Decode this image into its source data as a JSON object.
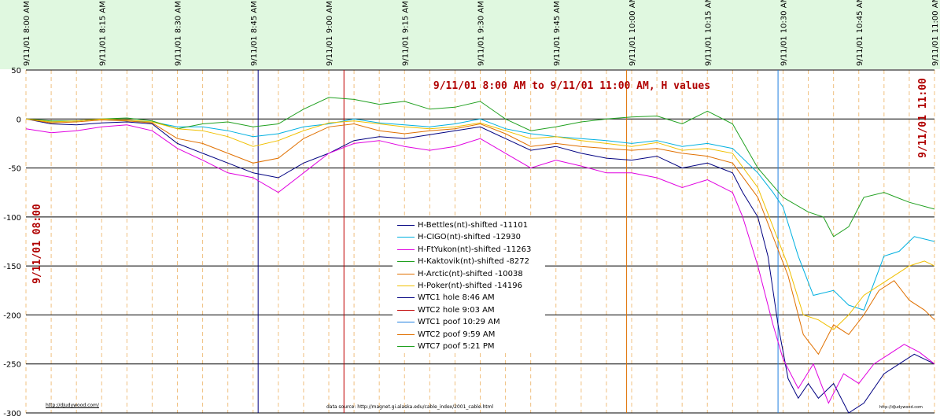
{
  "chart_data": {
    "type": "line",
    "title": "9/11/01 8:00 AM  to  9/11/01 11:00 AM, H values",
    "left_label": "9/11/01 08:00",
    "right_label": "9/11/01 11:00",
    "ylim": [
      -300,
      50
    ],
    "yticks": [
      50,
      0,
      -50,
      -100,
      -150,
      -200,
      -250,
      -300
    ],
    "xlim": [
      "8:00",
      "11:00"
    ],
    "xtick_labels": [
      "9/11/01 8:00 AM",
      "9/11/01 8:15 AM",
      "9/11/01 8:30 AM",
      "9/11/01 8:45 AM",
      "9/11/01 9:00 AM",
      "9/11/01 9:15 AM",
      "9/11/01 9:30 AM",
      "9/11/01 9:45 AM",
      "9/11/01 10:00 AM",
      "9/11/01 10:15 AM",
      "9/11/01 10:30 AM",
      "9/11/01 10:45 AM",
      "9/11/01 11:00 AM"
    ],
    "xticks": [
      "8:00",
      "8:15",
      "8:30",
      "8:45",
      "9:00",
      "9:15",
      "9:30",
      "9:45",
      "10:00",
      "10:15",
      "10:30",
      "10:45",
      "11:00"
    ],
    "minor_gridlines": [
      "8:05",
      "8:10",
      "8:20",
      "8:25",
      "8:35",
      "8:40",
      "8:50",
      "8:55",
      "9:05",
      "9:10",
      "9:20",
      "9:25",
      "9:35",
      "9:40",
      "9:50",
      "9:55",
      "10:05",
      "10:10",
      "10:20",
      "10:25",
      "10:35",
      "10:40",
      "10:50",
      "10:55"
    ],
    "series": [
      {
        "name": "H-Bettles(nt)-shifted -11101",
        "color": "#000080",
        "x": [
          "8:00",
          "8:05",
          "8:10",
          "8:15",
          "8:20",
          "8:25",
          "8:30",
          "8:35",
          "8:40",
          "8:45",
          "8:50",
          "8:55",
          "9:00",
          "9:05",
          "9:10",
          "9:15",
          "9:20",
          "9:25",
          "9:30",
          "9:35",
          "9:40",
          "9:45",
          "9:50",
          "9:55",
          "10:00",
          "10:05",
          "10:10",
          "10:15",
          "10:20",
          "10:22",
          "10:25",
          "10:27",
          "10:29",
          "10:31",
          "10:33",
          "10:35",
          "10:37",
          "10:40",
          "10:43",
          "10:46",
          "10:50",
          "10:53",
          "10:56",
          "11:00"
        ],
        "y": [
          0,
          -5,
          -6,
          -4,
          -3,
          -5,
          -25,
          -35,
          -45,
          -55,
          -60,
          -45,
          -35,
          -22,
          -18,
          -20,
          -16,
          -12,
          -8,
          -20,
          -32,
          -28,
          -35,
          -40,
          -42,
          -38,
          -50,
          -45,
          -55,
          -75,
          -100,
          -140,
          -210,
          -265,
          -285,
          -270,
          -285,
          -270,
          -300,
          -290,
          -260,
          -250,
          -240,
          -250
        ]
      },
      {
        "name": "H-CIGO(nt)-shifted -12930",
        "color": "#00B0E0",
        "x": [
          "8:00",
          "8:05",
          "8:10",
          "8:15",
          "8:20",
          "8:25",
          "8:30",
          "8:35",
          "8:40",
          "8:45",
          "8:50",
          "8:55",
          "9:00",
          "9:05",
          "9:10",
          "9:15",
          "9:20",
          "9:25",
          "9:30",
          "9:35",
          "9:40",
          "9:45",
          "9:50",
          "9:55",
          "10:00",
          "10:05",
          "10:10",
          "10:15",
          "10:20",
          "10:25",
          "10:28",
          "10:30",
          "10:33",
          "10:36",
          "10:40",
          "10:43",
          "10:46",
          "10:50",
          "10:53",
          "10:56",
          "11:00"
        ],
        "y": [
          0,
          -3,
          -2,
          0,
          -2,
          -3,
          -8,
          -8,
          -12,
          -18,
          -15,
          -8,
          -5,
          0,
          -4,
          -6,
          -8,
          -5,
          0,
          -10,
          -15,
          -18,
          -20,
          -22,
          -25,
          -22,
          -28,
          -25,
          -30,
          -55,
          -75,
          -90,
          -140,
          -180,
          -175,
          -190,
          -195,
          -140,
          -135,
          -120,
          -125
        ]
      },
      {
        "name": "H-FtYukon(nt)-shifted -11263",
        "color": "#E000E0",
        "x": [
          "8:00",
          "8:05",
          "8:10",
          "8:15",
          "8:20",
          "8:25",
          "8:30",
          "8:35",
          "8:40",
          "8:45",
          "8:50",
          "8:55",
          "9:00",
          "9:05",
          "9:10",
          "9:15",
          "9:20",
          "9:25",
          "9:30",
          "9:35",
          "9:40",
          "9:45",
          "9:50",
          "9:55",
          "10:00",
          "10:05",
          "10:10",
          "10:15",
          "10:20",
          "10:22",
          "10:25",
          "10:28",
          "10:30",
          "10:33",
          "10:36",
          "10:39",
          "10:42",
          "10:45",
          "10:48",
          "10:51",
          "10:54",
          "10:57",
          "11:00"
        ],
        "y": [
          -10,
          -14,
          -12,
          -8,
          -6,
          -12,
          -30,
          -42,
          -55,
          -60,
          -75,
          -55,
          -35,
          -25,
          -22,
          -28,
          -32,
          -28,
          -20,
          -35,
          -50,
          -42,
          -48,
          -55,
          -55,
          -60,
          -70,
          -62,
          -75,
          -100,
          -150,
          -210,
          -245,
          -275,
          -250,
          -290,
          -260,
          -270,
          -250,
          -240,
          -230,
          -238,
          -250
        ]
      },
      {
        "name": "H-Kaktovik(nt)-shifted -8272",
        "color": "#20A020",
        "x": [
          "8:00",
          "8:05",
          "8:10",
          "8:15",
          "8:20",
          "8:25",
          "8:30",
          "8:35",
          "8:40",
          "8:45",
          "8:50",
          "8:55",
          "9:00",
          "9:05",
          "9:10",
          "9:15",
          "9:20",
          "9:25",
          "9:30",
          "9:35",
          "9:40",
          "9:45",
          "9:50",
          "9:55",
          "10:00",
          "10:05",
          "10:10",
          "10:15",
          "10:20",
          "10:25",
          "10:30",
          "10:35",
          "10:38",
          "10:40",
          "10:43",
          "10:46",
          "10:50",
          "10:55",
          "11:00"
        ],
        "y": [
          0,
          -2,
          -2,
          0,
          1,
          -2,
          -10,
          -5,
          -3,
          -8,
          -5,
          10,
          22,
          20,
          15,
          18,
          10,
          12,
          18,
          0,
          -12,
          -8,
          -3,
          0,
          2,
          3,
          -5,
          8,
          -5,
          -50,
          -80,
          -95,
          -100,
          -120,
          -110,
          -80,
          -75,
          -85,
          -92
        ]
      },
      {
        "name": "H-Arctic(nt)-shifted -10038",
        "color": "#E07000",
        "x": [
          "8:00",
          "8:05",
          "8:10",
          "8:15",
          "8:20",
          "8:25",
          "8:30",
          "8:35",
          "8:40",
          "8:45",
          "8:50",
          "8:55",
          "9:00",
          "9:05",
          "9:10",
          "9:15",
          "9:20",
          "9:25",
          "9:30",
          "9:35",
          "9:40",
          "9:45",
          "9:50",
          "9:55",
          "10:00",
          "10:05",
          "10:10",
          "10:15",
          "10:20",
          "10:25",
          "10:28",
          "10:31",
          "10:34",
          "10:37",
          "10:40",
          "10:43",
          "10:46",
          "10:49",
          "10:52",
          "10:55",
          "10:58",
          "11:00"
        ],
        "y": [
          0,
          -4,
          -3,
          -1,
          -2,
          -4,
          -20,
          -25,
          -35,
          -45,
          -40,
          -20,
          -8,
          -5,
          -12,
          -15,
          -12,
          -10,
          -5,
          -15,
          -28,
          -25,
          -28,
          -30,
          -32,
          -30,
          -35,
          -38,
          -45,
          -80,
          -120,
          -160,
          -220,
          -240,
          -210,
          -220,
          -200,
          -175,
          -165,
          -185,
          -195,
          -205
        ]
      },
      {
        "name": "H-Poker(nt)-shifted -14196",
        "color": "#F0C000",
        "x": [
          "8:00",
          "8:05",
          "8:10",
          "8:15",
          "8:20",
          "8:25",
          "8:30",
          "8:35",
          "8:40",
          "8:45",
          "8:50",
          "8:55",
          "9:00",
          "9:05",
          "9:10",
          "9:15",
          "9:20",
          "9:25",
          "9:30",
          "9:35",
          "9:40",
          "9:45",
          "9:50",
          "9:55",
          "10:00",
          "10:05",
          "10:10",
          "10:15",
          "10:20",
          "10:25",
          "10:28",
          "10:31",
          "10:34",
          "10:37",
          "10:40",
          "10:43",
          "10:46",
          "10:49",
          "10:52",
          "10:55",
          "10:58",
          "11:00"
        ],
        "y": [
          0,
          -3,
          -2,
          0,
          -1,
          -3,
          -10,
          -12,
          -18,
          -28,
          -22,
          -12,
          -4,
          -2,
          -5,
          -8,
          -10,
          -8,
          -4,
          -12,
          -20,
          -18,
          -22,
          -25,
          -28,
          -24,
          -32,
          -30,
          -35,
          -70,
          -110,
          -150,
          -200,
          -205,
          -215,
          -200,
          -180,
          -170,
          -160,
          -150,
          -145,
          -150
        ]
      }
    ],
    "events": [
      {
        "name": "WTC1 hole 8:46 AM",
        "time": "8:46",
        "color": "#000080"
      },
      {
        "name": "WTC2 hole 9:03 AM",
        "time": "9:03",
        "color": "#C00000"
      },
      {
        "name": "WTC1 poof 10:29 AM",
        "time": "10:29",
        "color": "#2080E0"
      },
      {
        "name": "WTC2 poof 9:59 AM",
        "time": "9:59",
        "color": "#E07000"
      },
      {
        "name": "WTC7 poof 5:21 PM",
        "color": "#20A020"
      }
    ],
    "notes": {
      "left": "http://dJudywood.com/",
      "center": "data source: http://magnet.gi.alaska.edu/cable_index/2001_cable.html",
      "right": "http://dJudywood.com"
    },
    "colors": {
      "header_bg": "#E0F8E0",
      "title": "#B00000",
      "grid_major": "#000000",
      "grid_minor": "#F0C080"
    }
  }
}
